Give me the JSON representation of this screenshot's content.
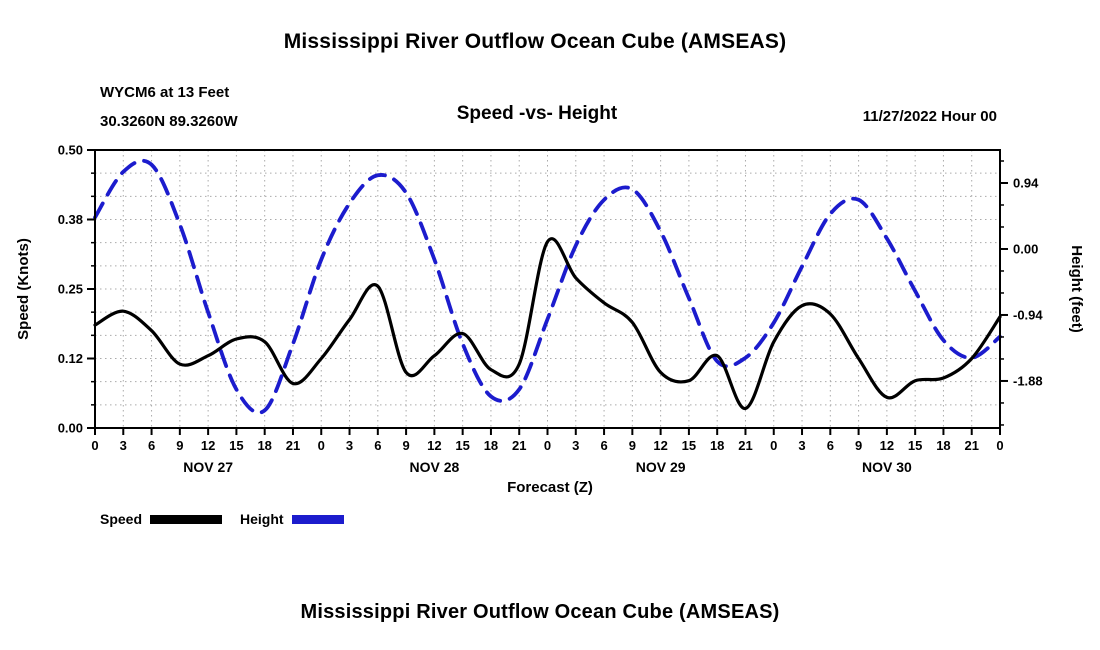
{
  "page": {
    "top_title": "Mississippi River Outflow Ocean Cube (AMSEAS)",
    "bottom_title": "Mississippi River Outflow Ocean Cube (AMSEAS)"
  },
  "header": {
    "station_line1": "WYCM6 at 13 Feet",
    "station_line2": "30.3260N 89.3260W",
    "plot_title": "Speed -vs- Height",
    "datetime": "11/27/2022 Hour 00"
  },
  "chart_data": {
    "type": "line",
    "title": "Speed -vs- Height",
    "xlabel": "Forecast (Z)",
    "x_hours": [
      0,
      3,
      6,
      9,
      12,
      15,
      18,
      21,
      24,
      27,
      30,
      33,
      36,
      39,
      42,
      45,
      48,
      51,
      54,
      57,
      60,
      63,
      66,
      69,
      72,
      75,
      78,
      81,
      84,
      87,
      90,
      93,
      96
    ],
    "x_tick_labels": [
      "0",
      "3",
      "6",
      "9",
      "12",
      "15",
      "18",
      "21",
      "0",
      "3",
      "6",
      "9",
      "12",
      "15",
      "18",
      "21",
      "0",
      "3",
      "6",
      "9",
      "12",
      "15",
      "18",
      "21",
      "0",
      "3",
      "6",
      "9",
      "12",
      "15",
      "18",
      "21",
      "0"
    ],
    "day_labels": [
      {
        "label": "NOV 27",
        "center_hour": 12
      },
      {
        "label": "NOV 28",
        "center_hour": 36
      },
      {
        "label": "NOV 29",
        "center_hour": 60
      },
      {
        "label": "NOV 30",
        "center_hour": 84
      }
    ],
    "axes": {
      "left": {
        "label": "Speed (Knots)",
        "min": 0,
        "max": 0.5,
        "tick_values": [
          0,
          0.125,
          0.25,
          0.375,
          0.5
        ],
        "tick_labels": [
          "0.00",
          "0.12",
          "0.25",
          "0.38",
          "0.50"
        ]
      },
      "right": {
        "label": "Height (feet)",
        "min": -2.55,
        "max": 1.41,
        "tick_values": [
          0.94,
          0,
          -0.94,
          -1.88
        ],
        "tick_labels": [
          "0.94",
          "0.00",
          "-0.94",
          "-1.88"
        ]
      }
    },
    "grid": {
      "visible": true,
      "color": "#aaaaaa"
    },
    "series": [
      {
        "name": "Speed",
        "axis": "left",
        "color": "#000000",
        "line_style": "solid",
        "values": [
          0.185,
          0.21,
          0.175,
          0.115,
          0.13,
          0.16,
          0.155,
          0.08,
          0.125,
          0.195,
          0.255,
          0.1,
          0.13,
          0.17,
          0.105,
          0.115,
          0.335,
          0.27,
          0.225,
          0.19,
          0.1,
          0.085,
          0.13,
          0.035,
          0.155,
          0.22,
          0.205,
          0.125,
          0.055,
          0.085,
          0.09,
          0.125,
          0.2
        ]
      },
      {
        "name": "Height",
        "axis": "right",
        "color": "#1c1ccd",
        "line_style": "dashed",
        "values": [
          0.45,
          1.1,
          1.2,
          0.35,
          -0.9,
          -2.0,
          -2.3,
          -1.35,
          -0.15,
          0.65,
          1.05,
          0.8,
          -0.15,
          -1.35,
          -2.1,
          -2.0,
          -1.0,
          0.05,
          0.7,
          0.85,
          0.25,
          -0.7,
          -1.6,
          -1.55,
          -1.05,
          -0.25,
          0.5,
          0.7,
          0.15,
          -0.6,
          -1.3,
          -1.55,
          -1.25
        ]
      }
    ],
    "legend": {
      "position": "bottom-left",
      "items": [
        {
          "label": "Speed",
          "color": "#000000",
          "style": "solid"
        },
        {
          "label": "Height",
          "color": "#1c1ccd",
          "style": "dashed"
        }
      ]
    }
  }
}
